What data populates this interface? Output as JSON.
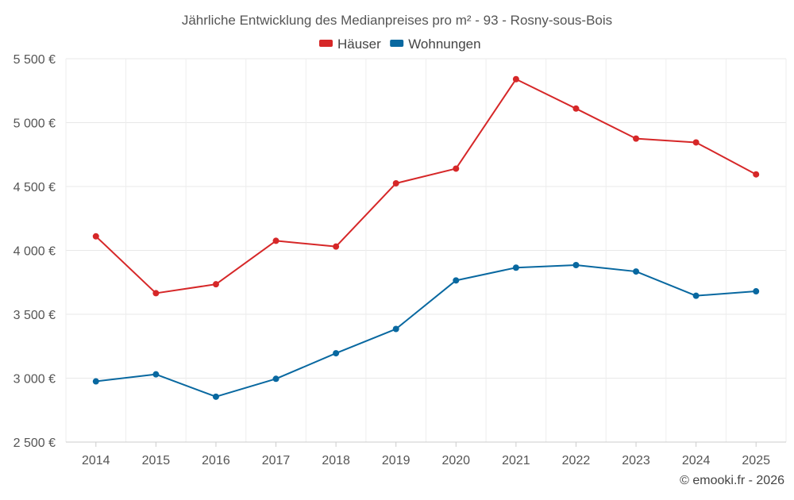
{
  "chart_data": {
    "type": "line",
    "title": "Jährliche Entwicklung des Medianpreises pro m² - 93 - Rosny-sous-Bois",
    "xlabel": "",
    "ylabel": "",
    "categories": [
      "2014",
      "2015",
      "2016",
      "2017",
      "2018",
      "2019",
      "2020",
      "2021",
      "2022",
      "2023",
      "2024",
      "2025"
    ],
    "ylim": [
      2500,
      5500
    ],
    "yticks": [
      2500,
      3000,
      3500,
      4000,
      4500,
      5000,
      5500
    ],
    "ytick_labels": [
      "2 500 €",
      "3 000 €",
      "3 500 €",
      "4 000 €",
      "4 500 €",
      "5 000 €",
      "5 500 €"
    ],
    "grid": true,
    "legend_position": "top-center",
    "series": [
      {
        "name": "Häuser",
        "color": "#d62728",
        "values": [
          4110,
          3665,
          3735,
          4075,
          4030,
          4525,
          4640,
          5340,
          5110,
          4875,
          4845,
          4595
        ]
      },
      {
        "name": "Wohnungen",
        "color": "#0868a0",
        "values": [
          2975,
          3030,
          2855,
          2995,
          3195,
          3385,
          3765,
          3865,
          3885,
          3835,
          3645,
          3680
        ]
      }
    ],
    "credit": "© emooki.fr - 2026"
  }
}
